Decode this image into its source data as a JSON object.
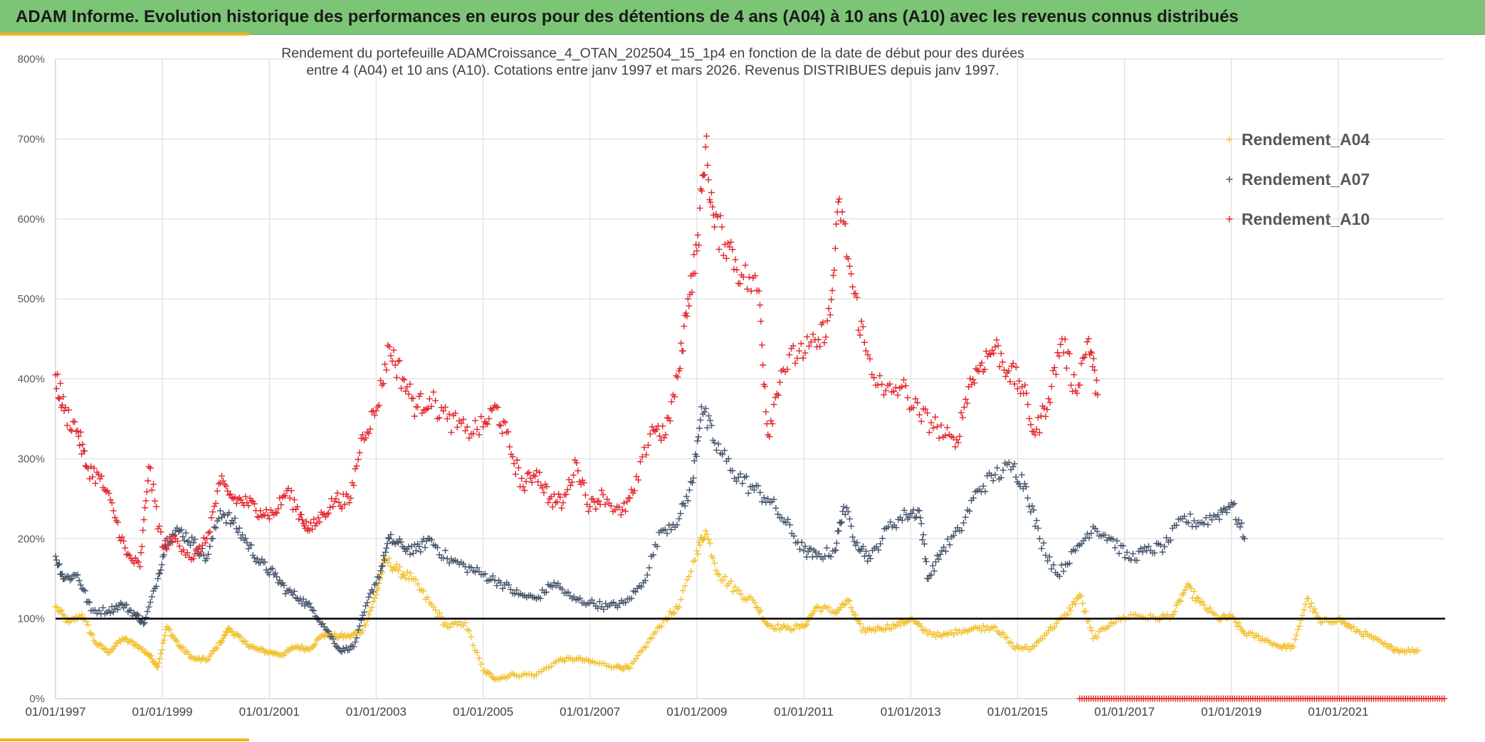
{
  "header": {
    "title": "ADAM Informe. Evolution historique des performances en euros pour des détentions de 4 ans (A04) à 10 ans (A10) avec les revenus connus distribués"
  },
  "colors": {
    "header_bg": "#7cc576",
    "accent_bar": "#f2b51c",
    "reference_line": "#000000",
    "grid": "#d9d9d9"
  },
  "chart_data": {
    "type": "scatter",
    "title_lines": [
      "Rendement du portefeuille ADAMCroissance_4_OTAN_202504_15_1p4  en fonction de la date de début pour des durées",
      "entre 4 (A04) et 10 ans (A10). Cotations entre janv 1997 et mars 2026. Revenus DISTRIBUES depuis janv 1997."
    ],
    "x_axis": {
      "type": "date",
      "range": [
        "1997-01-01",
        "2023-01-01"
      ],
      "tick_labels": [
        "01/01/1997",
        "01/01/1999",
        "01/01/2001",
        "01/01/2003",
        "01/01/2005",
        "01/01/2007",
        "01/01/2009",
        "01/01/2011",
        "01/01/2013",
        "01/01/2015",
        "01/01/2017",
        "01/01/2019",
        "01/01/2021"
      ],
      "gridlines": true
    },
    "y_axis": {
      "range": [
        0,
        8
      ],
      "format": "percent",
      "tick_labels": [
        "0%",
        "100%",
        "200%",
        "300%",
        "400%",
        "500%",
        "600%",
        "700%",
        "800%"
      ],
      "gridlines": true
    },
    "reference_line": {
      "y": 1.0
    },
    "legend": {
      "position": "top-right"
    },
    "series": [
      {
        "name": "Rendement_A04",
        "color": "#f2c12e",
        "marker": "+",
        "points": [
          [
            "1997-01-01",
            1.15
          ],
          [
            "1997-04-01",
            0.95
          ],
          [
            "1997-07-01",
            1.05
          ],
          [
            "1997-10-01",
            0.7
          ],
          [
            "1998-01-01",
            0.58
          ],
          [
            "1998-04-01",
            0.75
          ],
          [
            "1998-07-01",
            0.68
          ],
          [
            "1998-10-01",
            0.55
          ],
          [
            "1998-12-01",
            0.4
          ],
          [
            "1999-02-01",
            0.9
          ],
          [
            "1999-05-01",
            0.65
          ],
          [
            "1999-08-01",
            0.5
          ],
          [
            "1999-11-01",
            0.48
          ],
          [
            "2000-02-01",
            0.7
          ],
          [
            "2000-04-01",
            0.88
          ],
          [
            "2000-07-01",
            0.72
          ],
          [
            "2000-10-01",
            0.62
          ],
          [
            "2001-01-01",
            0.58
          ],
          [
            "2001-04-01",
            0.55
          ],
          [
            "2001-07-01",
            0.65
          ],
          [
            "2001-10-01",
            0.62
          ],
          [
            "2002-01-01",
            0.8
          ],
          [
            "2002-04-01",
            0.78
          ],
          [
            "2002-07-01",
            0.78
          ],
          [
            "2002-10-01",
            0.85
          ],
          [
            "2003-01-01",
            1.3
          ],
          [
            "2003-03-01",
            1.75
          ],
          [
            "2003-06-01",
            1.6
          ],
          [
            "2003-09-01",
            1.5
          ],
          [
            "2004-01-01",
            1.2
          ],
          [
            "2004-05-01",
            0.9
          ],
          [
            "2004-09-01",
            0.95
          ],
          [
            "2005-01-01",
            0.35
          ],
          [
            "2005-04-01",
            0.25
          ],
          [
            "2005-08-01",
            0.3
          ],
          [
            "2006-01-01",
            0.3
          ],
          [
            "2006-06-01",
            0.48
          ],
          [
            "2006-10-01",
            0.5
          ],
          [
            "2007-02-01",
            0.45
          ],
          [
            "2007-07-01",
            0.4
          ],
          [
            "2007-10-01",
            0.38
          ],
          [
            "2008-02-01",
            0.7
          ],
          [
            "2008-06-01",
            1.0
          ],
          [
            "2008-09-01",
            1.15
          ],
          [
            "2009-01-01",
            1.85
          ],
          [
            "2009-03-01",
            2.1
          ],
          [
            "2009-06-01",
            1.55
          ],
          [
            "2009-10-01",
            1.35
          ],
          [
            "2010-02-01",
            1.2
          ],
          [
            "2010-05-01",
            0.92
          ],
          [
            "2010-09-01",
            0.88
          ],
          [
            "2011-01-01",
            0.9
          ],
          [
            "2011-04-01",
            1.15
          ],
          [
            "2011-08-01",
            1.08
          ],
          [
            "2011-11-01",
            1.22
          ],
          [
            "2012-02-01",
            0.85
          ],
          [
            "2012-06-01",
            0.88
          ],
          [
            "2012-10-01",
            0.92
          ],
          [
            "2013-01-01",
            1.0
          ],
          [
            "2013-04-01",
            0.85
          ],
          [
            "2013-08-01",
            0.78
          ],
          [
            "2013-12-01",
            0.85
          ],
          [
            "2014-04-01",
            0.88
          ],
          [
            "2014-08-01",
            0.9
          ],
          [
            "2014-12-01",
            0.65
          ],
          [
            "2015-04-01",
            0.62
          ],
          [
            "2015-08-01",
            0.85
          ],
          [
            "2015-12-01",
            1.05
          ],
          [
            "2016-03-01",
            1.3
          ],
          [
            "2016-06-01",
            0.75
          ],
          [
            "2016-10-01",
            0.95
          ],
          [
            "2017-03-01",
            1.05
          ],
          [
            "2017-08-01",
            1.0
          ],
          [
            "2017-12-01",
            1.05
          ],
          [
            "2018-03-01",
            1.4
          ],
          [
            "2018-06-01",
            1.2
          ],
          [
            "2018-10-01",
            1.0
          ],
          [
            "2019-01-01",
            1.02
          ],
          [
            "2019-04-01",
            0.82
          ],
          [
            "2019-08-01",
            0.75
          ],
          [
            "2019-12-01",
            0.65
          ],
          [
            "2020-03-01",
            0.65
          ],
          [
            "2020-06-01",
            1.25
          ],
          [
            "2020-09-01",
            0.95
          ],
          [
            "2021-01-01",
            1.0
          ],
          [
            "2021-04-01",
            0.88
          ],
          [
            "2021-08-01",
            0.78
          ],
          [
            "2021-12-01",
            0.65
          ],
          [
            "2022-03-01",
            0.6
          ],
          [
            "2022-07-01",
            0.6
          ]
        ]
      },
      {
        "name": "Rendement_A07",
        "color": "#44546a",
        "marker": "+",
        "points": [
          [
            "1997-01-01",
            1.78
          ],
          [
            "1997-03-01",
            1.5
          ],
          [
            "1997-06-01",
            1.55
          ],
          [
            "1997-09-01",
            1.1
          ],
          [
            "1998-01-01",
            1.1
          ],
          [
            "1998-04-01",
            1.18
          ],
          [
            "1998-07-01",
            1.05
          ],
          [
            "1998-09-01",
            0.95
          ],
          [
            "1998-12-01",
            1.5
          ],
          [
            "1999-02-01",
            2.0
          ],
          [
            "1999-05-01",
            2.1
          ],
          [
            "1999-08-01",
            1.95
          ],
          [
            "1999-11-01",
            1.75
          ],
          [
            "2000-02-01",
            2.35
          ],
          [
            "2000-05-01",
            2.2
          ],
          [
            "2000-08-01",
            1.95
          ],
          [
            "2000-11-01",
            1.7
          ],
          [
            "2001-02-01",
            1.55
          ],
          [
            "2001-05-01",
            1.35
          ],
          [
            "2001-08-01",
            1.25
          ],
          [
            "2001-11-01",
            1.1
          ],
          [
            "2002-02-01",
            0.85
          ],
          [
            "2002-05-01",
            0.6
          ],
          [
            "2002-08-01",
            0.65
          ],
          [
            "2002-11-01",
            1.2
          ],
          [
            "2003-02-01",
            1.6
          ],
          [
            "2003-04-01",
            2.0
          ],
          [
            "2003-07-01",
            1.9
          ],
          [
            "2003-10-01",
            1.85
          ],
          [
            "2004-01-01",
            2.0
          ],
          [
            "2004-05-01",
            1.75
          ],
          [
            "2004-09-01",
            1.65
          ],
          [
            "2005-01-01",
            1.55
          ],
          [
            "2005-05-01",
            1.45
          ],
          [
            "2005-09-01",
            1.3
          ],
          [
            "2006-01-01",
            1.25
          ],
          [
            "2006-05-01",
            1.45
          ],
          [
            "2006-09-01",
            1.25
          ],
          [
            "2007-01-01",
            1.2
          ],
          [
            "2007-05-01",
            1.15
          ],
          [
            "2007-09-01",
            1.2
          ],
          [
            "2008-01-01",
            1.45
          ],
          [
            "2008-05-01",
            2.1
          ],
          [
            "2008-09-01",
            2.25
          ],
          [
            "2008-12-01",
            2.7
          ],
          [
            "2009-02-01",
            3.65
          ],
          [
            "2009-05-01",
            3.2
          ],
          [
            "2009-09-01",
            2.85
          ],
          [
            "2010-01-01",
            2.65
          ],
          [
            "2010-05-01",
            2.5
          ],
          [
            "2010-09-01",
            2.2
          ],
          [
            "2011-01-01",
            1.85
          ],
          [
            "2011-04-01",
            1.78
          ],
          [
            "2011-08-01",
            1.85
          ],
          [
            "2011-10-01",
            2.4
          ],
          [
            "2012-01-01",
            1.95
          ],
          [
            "2012-04-01",
            1.75
          ],
          [
            "2012-08-01",
            2.15
          ],
          [
            "2012-12-01",
            2.3
          ],
          [
            "2013-03-01",
            2.35
          ],
          [
            "2013-05-01",
            1.5
          ],
          [
            "2013-08-01",
            1.85
          ],
          [
            "2013-12-01",
            2.1
          ],
          [
            "2014-04-01",
            2.6
          ],
          [
            "2014-08-01",
            2.8
          ],
          [
            "2014-12-01",
            2.9
          ],
          [
            "2015-03-01",
            2.65
          ],
          [
            "2015-06-01",
            2.0
          ],
          [
            "2015-10-01",
            1.55
          ],
          [
            "2016-02-01",
            1.85
          ],
          [
            "2016-06-01",
            2.15
          ],
          [
            "2016-10-01",
            2.0
          ],
          [
            "2017-02-01",
            1.75
          ],
          [
            "2017-06-01",
            1.85
          ],
          [
            "2017-10-01",
            1.9
          ],
          [
            "2018-02-01",
            2.25
          ],
          [
            "2018-06-01",
            2.2
          ],
          [
            "2018-10-01",
            2.3
          ],
          [
            "2019-01-01",
            2.45
          ],
          [
            "2019-04-01",
            2.0
          ]
        ]
      },
      {
        "name": "Rendement_A10",
        "color": "#e3242b",
        "marker": "+",
        "points": [
          [
            "1997-01-01",
            4.05
          ],
          [
            "1997-03-01",
            3.6
          ],
          [
            "1997-06-01",
            3.35
          ],
          [
            "1997-08-01",
            2.9
          ],
          [
            "1997-11-01",
            2.75
          ],
          [
            "1998-02-01",
            2.35
          ],
          [
            "1998-05-01",
            1.8
          ],
          [
            "1998-08-01",
            1.65
          ],
          [
            "1998-10-01",
            2.9
          ],
          [
            "1999-01-01",
            1.9
          ],
          [
            "1999-04-01",
            2.0
          ],
          [
            "1999-08-01",
            1.75
          ],
          [
            "1999-11-01",
            2.0
          ],
          [
            "2000-02-01",
            2.7
          ],
          [
            "2000-05-01",
            2.5
          ],
          [
            "2000-08-01",
            2.45
          ],
          [
            "2000-11-01",
            2.35
          ],
          [
            "2001-02-01",
            2.3
          ],
          [
            "2001-05-01",
            2.6
          ],
          [
            "2001-08-01",
            2.3
          ],
          [
            "2001-10-01",
            2.1
          ],
          [
            "2002-01-01",
            2.3
          ],
          [
            "2002-04-01",
            2.5
          ],
          [
            "2002-07-01",
            2.45
          ],
          [
            "2002-10-01",
            3.3
          ],
          [
            "2003-01-01",
            3.6
          ],
          [
            "2003-04-01",
            4.4
          ],
          [
            "2003-07-01",
            4.0
          ],
          [
            "2003-10-01",
            3.65
          ],
          [
            "2004-01-01",
            3.75
          ],
          [
            "2004-05-01",
            3.5
          ],
          [
            "2004-09-01",
            3.35
          ],
          [
            "2005-01-01",
            3.4
          ],
          [
            "2005-04-01",
            3.65
          ],
          [
            "2005-07-01",
            3.15
          ],
          [
            "2005-10-01",
            2.65
          ],
          [
            "2006-01-01",
            2.85
          ],
          [
            "2006-04-01",
            2.5
          ],
          [
            "2006-07-01",
            2.45
          ],
          [
            "2006-10-01",
            2.95
          ],
          [
            "2007-01-01",
            2.4
          ],
          [
            "2007-04-01",
            2.55
          ],
          [
            "2007-08-01",
            2.3
          ],
          [
            "2007-11-01",
            2.6
          ],
          [
            "2008-03-01",
            3.4
          ],
          [
            "2008-06-01",
            3.3
          ],
          [
            "2008-09-01",
            4.1
          ],
          [
            "2008-11-01",
            5.0
          ],
          [
            "2009-01-01",
            5.6
          ],
          [
            "2009-03-01",
            6.9
          ],
          [
            "2009-05-01",
            5.9
          ],
          [
            "2009-08-01",
            5.7
          ],
          [
            "2009-11-01",
            5.3
          ],
          [
            "2010-03-01",
            5.1
          ],
          [
            "2010-05-01",
            3.3
          ],
          [
            "2010-08-01",
            4.1
          ],
          [
            "2010-12-01",
            4.35
          ],
          [
            "2011-04-01",
            4.4
          ],
          [
            "2011-07-01",
            4.8
          ],
          [
            "2011-09-01",
            6.25
          ],
          [
            "2011-12-01",
            5.15
          ],
          [
            "2012-03-01",
            4.35
          ],
          [
            "2012-07-01",
            3.8
          ],
          [
            "2012-11-01",
            3.9
          ],
          [
            "2013-03-01",
            3.55
          ],
          [
            "2013-07-01",
            3.4
          ],
          [
            "2013-11-01",
            3.15
          ],
          [
            "2014-02-01",
            3.9
          ],
          [
            "2014-05-01",
            4.2
          ],
          [
            "2014-08-01",
            4.4
          ],
          [
            "2014-11-01",
            4.1
          ],
          [
            "2015-02-01",
            3.9
          ],
          [
            "2015-05-01",
            3.3
          ],
          [
            "2015-08-01",
            3.75
          ],
          [
            "2015-11-01",
            4.5
          ],
          [
            "2016-02-01",
            3.85
          ],
          [
            "2016-05-01",
            4.5
          ],
          [
            "2016-07-01",
            3.8
          ]
        ],
        "zero_band": {
          "from": "2016-03-01",
          "to": "2023-01-01",
          "y": 0
        }
      }
    ]
  }
}
